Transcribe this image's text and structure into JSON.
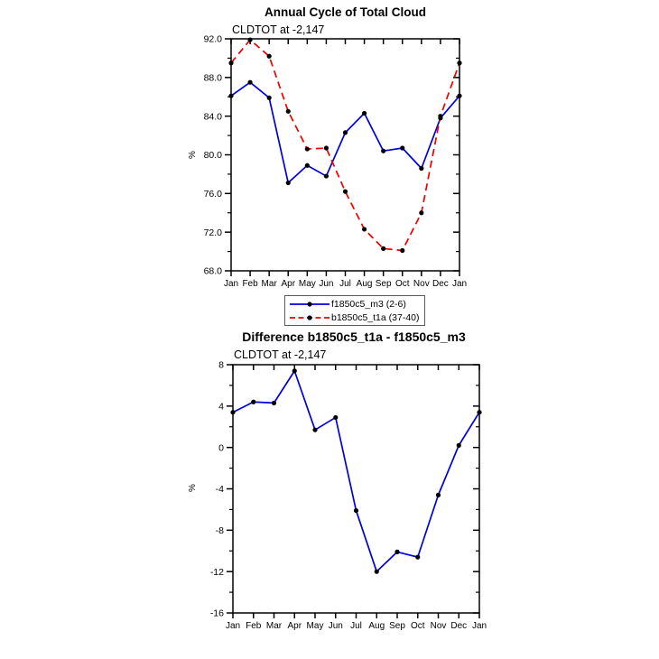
{
  "figure": {
    "background": "#ffffff"
  },
  "legend": {
    "entries": [
      {
        "label": "f1850c5_m3 (2-6)",
        "color": "#0000dd",
        "line_style": "solid",
        "marker": "black-dot"
      },
      {
        "label": "b1850c5_t1a (37-40)",
        "color": "#ee0000",
        "line_style": "dashed",
        "marker": "black-dot"
      }
    ]
  },
  "chart_data": [
    {
      "type": "line",
      "title": "Annual Cycle of Total Cloud",
      "subtitle": "CLDTOT at -2,147",
      "xlabel": "",
      "ylabel": "%",
      "categories": [
        "Jan",
        "Feb",
        "Mar",
        "Apr",
        "May",
        "Jun",
        "Jul",
        "Aug",
        "Sep",
        "Oct",
        "Nov",
        "Dec",
        "Jan"
      ],
      "ylim": [
        68.0,
        92.0
      ],
      "yticks": [
        92,
        88,
        84,
        80,
        76,
        72,
        68
      ],
      "ytick_labels": [
        "92.0",
        "88.0",
        "84.0",
        "80.0",
        "76.0",
        "72.0",
        "68.0"
      ],
      "yticks_minor": [
        90,
        86,
        82,
        78,
        74,
        70
      ],
      "grid": false,
      "legend_position": "below",
      "series": [
        {
          "name": "f1850c5_m3 (2-6)",
          "color": "#0000dd",
          "line_style": "solid",
          "marker": "black-dot",
          "values": [
            86.1,
            87.5,
            85.9,
            77.1,
            78.9,
            77.8,
            82.3,
            84.3,
            80.4,
            80.7,
            78.6,
            83.8,
            86.1
          ]
        },
        {
          "name": "b1850c5_t1a (37-40)",
          "color": "#ee0000",
          "line_style": "dashed",
          "marker": "black-dot",
          "values": [
            89.5,
            91.9,
            90.2,
            84.5,
            80.6,
            80.7,
            76.2,
            72.3,
            70.3,
            70.1,
            74.0,
            84.0,
            89.5
          ]
        }
      ]
    },
    {
      "type": "line",
      "title": "Difference b1850c5_t1a - f1850c5_m3",
      "subtitle": "CLDTOT at -2,147",
      "xlabel": "",
      "ylabel": "%",
      "categories": [
        "Jan",
        "Feb",
        "Mar",
        "Apr",
        "May",
        "Jun",
        "Jul",
        "Aug",
        "Sep",
        "Oct",
        "Nov",
        "Dec",
        "Jan"
      ],
      "ylim": [
        -16,
        8
      ],
      "yticks": [
        8,
        4,
        0,
        -4,
        -8,
        -12,
        -16
      ],
      "ytick_labels": [
        "8",
        "4",
        "0",
        "-4",
        "-8",
        "-12",
        "-16"
      ],
      "yticks_minor": [
        6,
        2,
        -2,
        -6,
        -10,
        -14
      ],
      "grid": false,
      "legend_position": "none",
      "series": [
        {
          "name": "b1850c5_t1a - f1850c5_m3",
          "color": "#0000dd",
          "line_style": "solid",
          "marker": "black-dot",
          "values": [
            3.4,
            4.4,
            4.3,
            7.4,
            1.7,
            2.9,
            -6.1,
            -12.0,
            -10.1,
            -10.6,
            -4.6,
            0.2,
            3.4
          ]
        }
      ]
    }
  ]
}
